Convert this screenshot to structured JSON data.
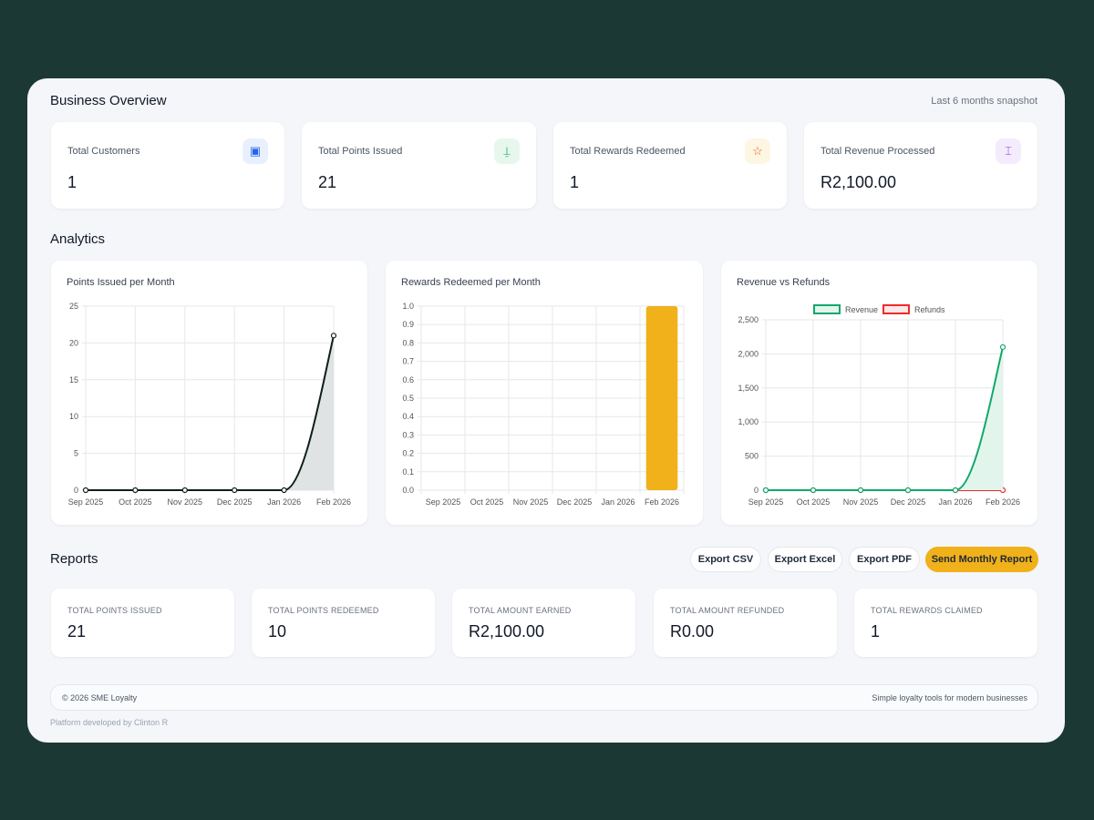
{
  "overview": {
    "title": "Business Overview",
    "subtitle": "Last 6 months snapshot",
    "kpis": [
      {
        "label": "Total Customers",
        "value": "1",
        "icon": "id-badge-icon",
        "color": "#2563eb",
        "bg": "#e8f0fe",
        "glyph": "▣"
      },
      {
        "label": "Total Points Issued",
        "value": "21",
        "icon": "bell-icon",
        "color": "#16a34a",
        "bg": "#e7f7ee",
        "glyph": "⍊"
      },
      {
        "label": "Total Rewards Redeemed",
        "value": "1",
        "icon": "star-icon",
        "color": "#ea580c",
        "bg": "#fdf6e3",
        "glyph": "☆"
      },
      {
        "label": "Total Revenue Processed",
        "value": "R2,100.00",
        "icon": "split-icon",
        "color": "#9333ea",
        "bg": "#f4ecfd",
        "glyph": "⌶"
      }
    ]
  },
  "analytics": {
    "title": "Analytics"
  },
  "chart_data": [
    {
      "type": "area",
      "title": "Points Issued per Month",
      "categories": [
        "Sep 2025",
        "Oct 2025",
        "Nov 2025",
        "Dec 2025",
        "Jan 2026",
        "Feb 2026"
      ],
      "series": [
        {
          "values": [
            0,
            0,
            0,
            0,
            0,
            21
          ],
          "color": "#0f1f1a",
          "fill": "#dfe3e3"
        }
      ],
      "ylim": [
        0,
        25
      ],
      "yticks": [
        0,
        5,
        10,
        15,
        20,
        25
      ],
      "grid": true
    },
    {
      "type": "bar",
      "title": "Rewards Redeemed per Month",
      "categories": [
        "Sep 2025",
        "Oct 2025",
        "Nov 2025",
        "Dec 2025",
        "Jan 2026",
        "Feb 2026"
      ],
      "series": [
        {
          "values": [
            0,
            0,
            0,
            0,
            0,
            1
          ],
          "color": "#f0b11a"
        }
      ],
      "ylim": [
        0,
        1
      ],
      "yticks": [
        0,
        0.1,
        0.2,
        0.3,
        0.4,
        0.5,
        0.6,
        0.7,
        0.8,
        0.9,
        1.0
      ],
      "grid": true
    },
    {
      "type": "line",
      "title": "Revenue vs Refunds",
      "categories": [
        "Sep 2025",
        "Oct 2025",
        "Nov 2025",
        "Dec 2025",
        "Jan 2026",
        "Feb 2026"
      ],
      "series": [
        {
          "name": "Revenue",
          "values": [
            0,
            0,
            0,
            0,
            0,
            2100
          ],
          "color": "#12a86a",
          "fill": "#e2f5ec"
        },
        {
          "name": "Refunds",
          "values": [
            0,
            0,
            0,
            0,
            0,
            0
          ],
          "color": "#ef2b2b",
          "fill": "#fde8e8"
        }
      ],
      "ylim": [
        0,
        2500
      ],
      "yticks": [
        0,
        500,
        1000,
        1500,
        2000,
        2500
      ],
      "ytick_labels": [
        "0",
        "500",
        "1,000",
        "1,500",
        "2,000",
        "2,500"
      ],
      "grid": true,
      "legend": "top"
    }
  ],
  "reports": {
    "title": "Reports",
    "buttons": [
      "Export CSV",
      "Export Excel",
      "Export PDF",
      "Send Monthly Report"
    ],
    "stats": [
      {
        "label": "TOTAL POINTS ISSUED",
        "value": "21"
      },
      {
        "label": "TOTAL POINTS REDEEMED",
        "value": "10"
      },
      {
        "label": "TOTAL AMOUNT EARNED",
        "value": "R2,100.00"
      },
      {
        "label": "TOTAL AMOUNT REFUNDED",
        "value": "R0.00"
      },
      {
        "label": "TOTAL REWARDS CLAIMED",
        "value": "1"
      }
    ]
  },
  "footer": {
    "copyright": "© 2026 SME Loyalty",
    "tagline": "Simple loyalty tools for modern businesses",
    "developer": "Platform developed by Clinton R"
  }
}
